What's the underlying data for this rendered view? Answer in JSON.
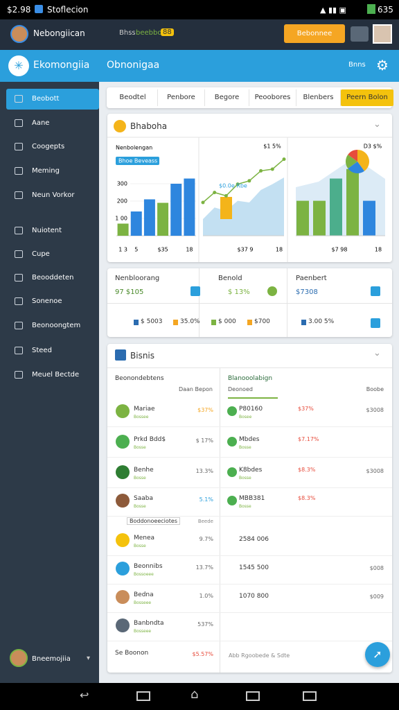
{
  "status": {
    "time": "$2.98",
    "app": "Stoflecion",
    "battery": "635"
  },
  "header": {
    "user": "Nebongiican",
    "search": "Bhss",
    "search_hint": "beebboo",
    "badge": "88",
    "button": "Bebonnee"
  },
  "appbar": {
    "brand": "Ekomongiia",
    "section": "Obnonigaa",
    "menu": "Bnns"
  },
  "sidebar": {
    "items": [
      "Beobott",
      "Aane",
      "Coogepts",
      "Meming",
      "Neun Vorkor",
      "Nuiotent",
      "Cupe",
      "Beooddeten",
      "Sonenoe",
      "Beonoongtem",
      "Steed",
      "Meuel Bectde"
    ],
    "user": "Bneemojiia"
  },
  "tabs": [
    "Beodtel",
    "Penbore",
    "Begore",
    "Peoobores",
    "Blenbers",
    "Peern Bolon"
  ],
  "overview": {
    "title": "Bhaboha",
    "charts": [
      {
        "type": "bar",
        "title": "Nenbolengan",
        "tag": "Bhoe Beveass",
        "ylim": [
          0,
          350
        ],
        "yticks": [
          {
            "value": 300,
            "label": "300"
          },
          {
            "value": 200,
            "label": "200"
          },
          {
            "value": 100,
            "label": "1 00"
          }
        ],
        "categories": [
          "1 3",
          "5",
          null,
          "$35",
          null,
          "18"
        ],
        "values": [
          70,
          140,
          210,
          190,
          300,
          330
        ],
        "colors": [
          "#7cb342",
          "#2e86de",
          "#2e86de",
          "#7cb342",
          "#2e86de",
          "#2e86de"
        ]
      },
      {
        "type": "line",
        "title": "$1 5%",
        "tag": "$0.0e Rbe",
        "ylim": [
          0,
          100
        ],
        "line": {
          "color": "#7cb342",
          "values": [
            40,
            52,
            48,
            62,
            66,
            78,
            80,
            92
          ]
        },
        "area": {
          "color": "#a9d3ec",
          "values": [
            20,
            34,
            30,
            42,
            40,
            55,
            62,
            70
          ]
        },
        "bar": {
          "color": "#f4b41a",
          "value": 40
        },
        "x_labels": [
          "$37 9",
          "18"
        ]
      },
      {
        "type": "bar",
        "title": "D3 $%",
        "ylim": [
          0,
          120
        ],
        "values": [
          55,
          55,
          90,
          105,
          55
        ],
        "colors": [
          "#7cb342",
          "#7cb342",
          "#4cae8c",
          "#7cb342",
          "#2e86de"
        ],
        "pie": {
          "values": [
            40,
            25,
            20,
            15
          ],
          "colors": [
            "#f4b41a",
            "#2e86de",
            "#7cb342",
            "#e74c3c"
          ]
        },
        "x_labels": [
          "$7 98",
          "18"
        ]
      }
    ]
  },
  "stats": {
    "items": [
      {
        "label": "Nenbloorang",
        "value": "97 $105"
      },
      {
        "label": "Benold",
        "value": "$ 13%"
      },
      {
        "label": "Paenbert",
        "value": "$7308"
      }
    ],
    "row": [
      "$ 5003",
      "35.0%",
      "$ 000",
      "$700",
      "3.00 5%"
    ]
  },
  "list": {
    "title": "Bisnis",
    "left": {
      "header": [
        "Beonondebtens",
        "Daan Bepon"
      ],
      "rows": [
        {
          "name": "Mariae",
          "sub": "Bossee",
          "value": "$37%"
        },
        {
          "name": "Prkd Bdd$",
          "sub": "Bosse",
          "value": "$ 17%"
        },
        {
          "name": "Benhe",
          "sub": "Bosse",
          "value": "13.3%"
        },
        {
          "name": "Saaba",
          "sub": "Bosse",
          "value": "5.1%"
        },
        {
          "name": "Menea",
          "sub": "Bosse",
          "value": "9.7%"
        },
        {
          "name": "Beonnibs",
          "sub": "Bossoeee",
          "value": "13.7%"
        },
        {
          "name": "Bedna",
          "sub": "Bosseee",
          "value": "1.0%"
        },
        {
          "name": "Banbndta",
          "sub": "Bosseee",
          "value": "537%"
        }
      ],
      "search": "Boddonoeeciotes",
      "search_note": "Beede",
      "footer": [
        "Se Boonon",
        "$5.57%"
      ]
    },
    "right": {
      "header": [
        "Blanooolabign",
        "Deonoed",
        "Boobe"
      ],
      "rows": [
        {
          "name": "P80160",
          "sub": "Bosee",
          "pct": "$37%",
          "value": "$3008"
        },
        {
          "name": "Mbdes",
          "sub": "Bosse",
          "pct": "$7.17%"
        },
        {
          "name": "K8bdes",
          "sub": "Bosse",
          "pct": "$8.3%",
          "value": "$3008"
        },
        {
          "name": "MBB381",
          "sub": "Bosse",
          "pct": "$8.3%"
        }
      ],
      "totals": [
        {
          "name": "2584 006"
        },
        {
          "name": "1545 500",
          "value": "$008"
        },
        {
          "name": "1070 800",
          "value": "$009"
        }
      ],
      "footer": "Abb Rgoobede & Sdte"
    }
  }
}
